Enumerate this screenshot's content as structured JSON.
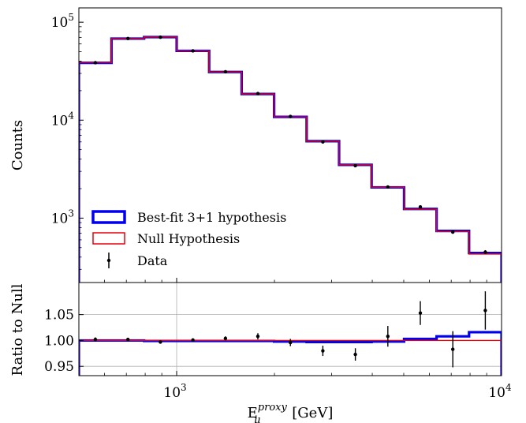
{
  "chart_data": [
    {
      "type": "line",
      "panel": "main",
      "yscale": "log",
      "xscale": "log",
      "ylabel": "Counts",
      "xlim": [
        500,
        10000
      ],
      "ylim": [
        220,
        140000
      ],
      "yticks": [
        {
          "value": 1000,
          "base": "10",
          "exp": "3"
        },
        {
          "value": 10000,
          "base": "10",
          "exp": "4"
        },
        {
          "value": 100000,
          "base": "10",
          "exp": "5"
        }
      ],
      "bin_edges": [
        500,
        630,
        794,
        1000,
        1259,
        1585,
        1995,
        2512,
        3162,
        3981,
        5012,
        6310,
        7943,
        10000
      ],
      "data_x": [
        562,
        708,
        891,
        1122,
        1413,
        1778,
        2239,
        2818,
        3548,
        4467,
        5623,
        7079,
        8913
      ],
      "series": [
        {
          "name": "Best-fit 3+1 hypothesis",
          "style": "step",
          "color": "#0000ee",
          "values": [
            38500,
            68000,
            70500,
            51000,
            31000,
            18500,
            10800,
            6100,
            3500,
            2060,
            1240,
            740,
            440
          ]
        },
        {
          "name": "Null Hypothesis",
          "style": "step",
          "color": "#e8000b",
          "values": [
            38500,
            68000,
            70500,
            51000,
            31000,
            18500,
            10800,
            6100,
            3500,
            2060,
            1230,
            730,
            430
          ]
        },
        {
          "name": "Data",
          "style": "errorbar",
          "color": "#000000",
          "values": [
            38600,
            68100,
            70300,
            51000,
            31200,
            18700,
            10900,
            6000,
            3430,
            2080,
            1300,
            720,
            450
          ],
          "errors": [
            200,
            260,
            260,
            230,
            180,
            140,
            100,
            78,
            59,
            45,
            36,
            27,
            21
          ]
        }
      ],
      "legend_position": "lower-left",
      "grid": false
    },
    {
      "type": "line",
      "panel": "ratio",
      "xscale": "log",
      "ylabel": "Ratio to Null",
      "xlabel_base": "E",
      "xlabel_sub": "μ",
      "xlabel_sup": "proxy",
      "xlabel_unit": "[GeV]",
      "xlim": [
        500,
        10000
      ],
      "ylim": [
        0.932,
        1.112
      ],
      "yticks": [
        "0.95",
        "1.00",
        "1.05"
      ],
      "xticks": [
        {
          "value": 1000,
          "base": "10",
          "exp": "3"
        },
        {
          "value": 10000,
          "base": "10",
          "exp": "4"
        }
      ],
      "bin_edges": [
        500,
        630,
        794,
        1000,
        1259,
        1585,
        1995,
        2512,
        3162,
        3981,
        5012,
        6310,
        7943,
        10000
      ],
      "data_x": [
        562,
        708,
        891,
        1122,
        1413,
        1778,
        2239,
        2818,
        3548,
        4467,
        5623,
        7079,
        8913
      ],
      "series": [
        {
          "name": "Best-fit 3+1 hypothesis",
          "style": "step",
          "color": "#0000ee",
          "values": [
            1.0,
            1.0,
            0.999,
            0.999,
            0.999,
            0.999,
            0.998,
            0.997,
            0.997,
            0.998,
            1.003,
            1.008,
            1.016
          ]
        },
        {
          "name": "Null Hypothesis",
          "style": "step",
          "color": "#e8000b",
          "values": [
            1.0,
            1.0,
            1.0,
            1.0,
            1.0,
            1.0,
            1.0,
            1.0,
            1.0,
            1.0,
            1.0,
            1.0,
            1.0
          ]
        },
        {
          "name": "Data",
          "style": "errorbar",
          "color": "#000000",
          "values": [
            1.002,
            1.002,
            0.997,
            1.001,
            1.004,
            1.008,
            0.996,
            0.98,
            0.973,
            1.008,
            1.053,
            0.983,
            1.058
          ],
          "errors": [
            0.004,
            0.003,
            0.003,
            0.003,
            0.004,
            0.006,
            0.007,
            0.01,
            0.012,
            0.02,
            0.023,
            0.035,
            0.037
          ]
        }
      ],
      "grid": true
    }
  ]
}
